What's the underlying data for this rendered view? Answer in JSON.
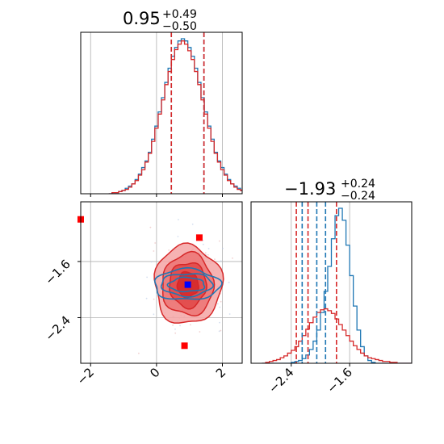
{
  "chart_data": [
    {
      "type": "histogram",
      "panel": "top-left",
      "title": {
        "value": "0.95",
        "plus": "+0.49",
        "minus": "−0.50"
      },
      "x_range": [
        -2.3,
        2.6
      ],
      "grid": true,
      "bin_start": -1.45,
      "bin_width": 0.1,
      "series": [
        {
          "color": "#1f77b4",
          "counts": [
            0,
            1,
            1,
            2,
            3,
            5,
            7,
            9,
            13,
            18,
            24,
            30,
            38,
            50,
            62,
            75,
            88,
            102,
            115,
            126,
            134,
            140,
            142,
            140,
            134,
            126,
            115,
            102,
            88,
            75,
            62,
            50,
            38,
            30,
            24,
            18,
            13,
            9,
            7,
            5,
            3,
            2,
            1,
            1,
            0
          ]
        },
        {
          "color": "#d62728",
          "counts": [
            0,
            1,
            1,
            2,
            3,
            4,
            6,
            9,
            12,
            17,
            22,
            29,
            37,
            48,
            60,
            73,
            86,
            100,
            112,
            123,
            132,
            137,
            140,
            137,
            131,
            123,
            112,
            100,
            86,
            73,
            60,
            48,
            37,
            29,
            22,
            17,
            12,
            9,
            6,
            4,
            3,
            2,
            1,
            1,
            0
          ]
        }
      ],
      "quantile_lines": [
        {
          "x": 0.45,
          "color": "#1f77b4"
        },
        {
          "x": 0.45,
          "color": "#d62728"
        },
        {
          "x": 1.44,
          "color": "#1f77b4"
        },
        {
          "x": 1.44,
          "color": "#d62728"
        }
      ]
    },
    {
      "type": "contour",
      "panel": "bottom-left",
      "x_range": [
        -2.3,
        2.6
      ],
      "y_range": [
        -3.05,
        -0.75
      ],
      "x_ticks": [
        -2,
        0,
        2
      ],
      "x_tick_labels": [
        "−2",
        "0",
        "2"
      ],
      "y_ticks": [
        -1.6,
        -2.4
      ],
      "y_tick_labels": [
        "−1.6",
        "−2.4"
      ],
      "grid": true,
      "red_contours": [
        {
          "cx": 0.95,
          "cy": -1.93,
          "rx": 1.02,
          "ry": 0.56,
          "fill": "#f4a5a5"
        },
        {
          "cx": 0.95,
          "cy": -1.93,
          "rx": 0.78,
          "ry": 0.44,
          "fill": "#ec7373"
        },
        {
          "cx": 0.95,
          "cy": -1.93,
          "rx": 0.56,
          "ry": 0.32,
          "fill": "#e04646"
        },
        {
          "cx": 0.95,
          "cy": -1.93,
          "rx": 0.32,
          "ry": 0.18,
          "fill": "#d62728"
        }
      ],
      "blue_contours": [
        {
          "cx": 0.92,
          "cy": -1.93,
          "rx": 1.0,
          "ry": 0.22
        },
        {
          "cx": 0.92,
          "cy": -1.93,
          "rx": 0.78,
          "ry": 0.16
        },
        {
          "cx": 0.92,
          "cy": -1.93,
          "rx": 0.55,
          "ry": 0.1
        }
      ],
      "markers": [
        {
          "x": -2.3,
          "y": -1.0,
          "color": "#ff0000"
        },
        {
          "x": 1.3,
          "y": -1.26,
          "color": "#ff0000"
        },
        {
          "x": 0.85,
          "y": -2.8,
          "color": "#ff0000"
        },
        {
          "x": 0.95,
          "y": -1.93,
          "color": "#0000ff"
        }
      ]
    },
    {
      "type": "histogram",
      "panel": "bottom-right",
      "title": {
        "value": "−1.93",
        "plus": "+0.24",
        "minus": "−0.24"
      },
      "x_range": [
        -2.95,
        -0.75
      ],
      "x_ticks": [
        -2.4,
        -1.6
      ],
      "x_tick_labels": [
        "−2.4",
        "−1.6"
      ],
      "grid": true,
      "bin_start": -2.8,
      "bin_width": 0.05,
      "series": [
        {
          "color": "#1f77b4",
          "counts": [
            0,
            0,
            0,
            0,
            0,
            0,
            0,
            0,
            1,
            2,
            3,
            5,
            9,
            15,
            24,
            36,
            55,
            78,
            105,
            135,
            160,
            168,
            155,
            128,
            95,
            62,
            36,
            18,
            8,
            3,
            1,
            0,
            0,
            0,
            0,
            0,
            0,
            0,
            0,
            0,
            0
          ]
        },
        {
          "color": "#d62728",
          "counts": [
            0,
            1,
            2,
            3,
            4,
            6,
            8,
            11,
            14,
            18,
            24,
            30,
            37,
            44,
            50,
            55,
            58,
            59,
            57,
            54,
            48,
            42,
            36,
            30,
            24,
            19,
            15,
            11,
            8,
            6,
            5,
            4,
            3,
            2,
            2,
            1,
            1,
            0,
            0,
            0,
            0
          ]
        }
      ],
      "quantile_lines": [
        {
          "x": -2.33,
          "color": "#d62728"
        },
        {
          "x": -2.17,
          "color": "#d62728"
        },
        {
          "x": -2.05,
          "color": "#1f77b4"
        },
        {
          "x": -1.93,
          "color": "#1f77b4"
        },
        {
          "x": -2.25,
          "color": "#1f77b4"
        },
        {
          "x": -1.78,
          "color": "#d62728"
        }
      ]
    }
  ]
}
